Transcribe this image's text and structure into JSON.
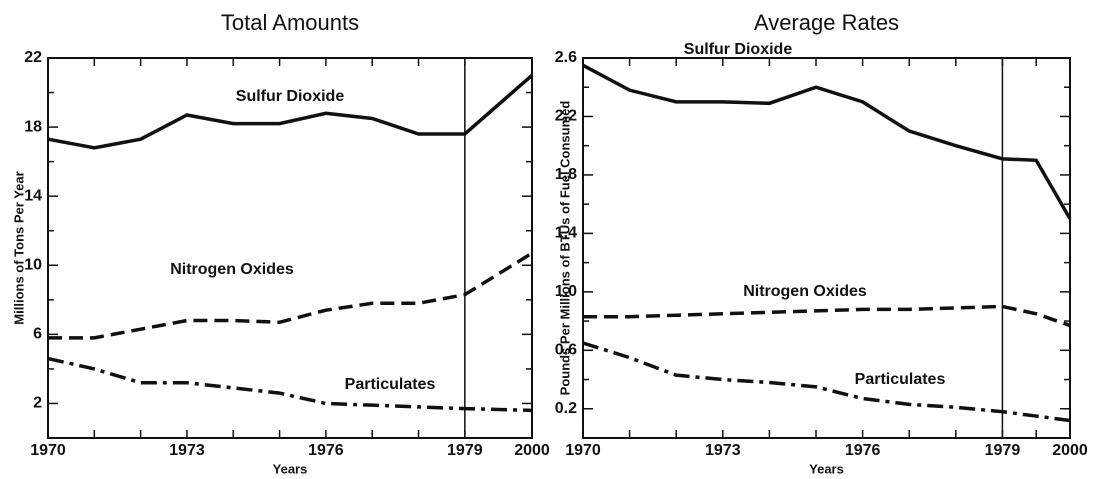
{
  "chart_data": [
    {
      "type": "line",
      "title": "Total Amounts",
      "y_label": "Millions of Tons Per Year",
      "x_label": "Years",
      "categories": [
        "1970",
        null,
        null,
        "1973",
        null,
        null,
        "1976",
        null,
        null,
        "1979",
        "2000"
      ],
      "ylim": [
        0,
        22
      ],
      "yticks": [
        2,
        6,
        10,
        14,
        18,
        22
      ],
      "series": [
        {
          "name": "Sulfur Dioxide",
          "color": "#111111",
          "dash": "solid",
          "values": [
            17.3,
            16.8,
            17.3,
            18.7,
            18.2,
            18.2,
            18.8,
            18.5,
            17.6,
            17.6,
            21.0
          ]
        },
        {
          "name": "Nitrogen Oxides",
          "color": "#111111",
          "dash": "dashed",
          "values": [
            5.8,
            5.8,
            6.3,
            6.8,
            6.8,
            6.7,
            7.4,
            7.8,
            7.8,
            8.3,
            10.7
          ]
        },
        {
          "name": "Particulates",
          "color": "#111111",
          "dash": "dashdot",
          "values": [
            4.6,
            4.0,
            3.2,
            3.2,
            2.9,
            2.6,
            2.0,
            1.9,
            1.8,
            1.7,
            1.6
          ]
        }
      ]
    },
    {
      "type": "line",
      "title": "Average Rates",
      "y_label": "Pounds Per Millions of BTUs of Fuel Consumed",
      "x_label": "Years",
      "categories": [
        "1970",
        null,
        null,
        "1973",
        null,
        null,
        "1976",
        null,
        null,
        "1979",
        null,
        "2000"
      ],
      "ylim": [
        0,
        2.6
      ],
      "yticks": [
        0.2,
        0.6,
        {
          "value": 1.0,
          "label": "1.0"
        },
        1.4,
        1.8,
        2.2,
        2.6
      ],
      "series": [
        {
          "name": "Sulfur Dioxide",
          "color": "#111111",
          "dash": "solid",
          "values": [
            2.55,
            2.38,
            2.3,
            2.3,
            2.29,
            2.4,
            2.3,
            2.1,
            2.0,
            1.91,
            1.9,
            1.5
          ]
        },
        {
          "name": "Nitrogen Oxides",
          "color": "#111111",
          "dash": "dashed",
          "values": [
            0.83,
            0.83,
            0.84,
            0.85,
            0.86,
            0.87,
            0.88,
            0.88,
            0.89,
            0.9,
            0.85,
            0.77
          ]
        },
        {
          "name": "Particulates",
          "color": "#111111",
          "dash": "dashdot",
          "values": [
            0.65,
            0.55,
            0.43,
            0.4,
            0.38,
            0.35,
            0.27,
            0.23,
            0.21,
            0.18,
            0.15,
            0.12
          ]
        }
      ]
    }
  ]
}
